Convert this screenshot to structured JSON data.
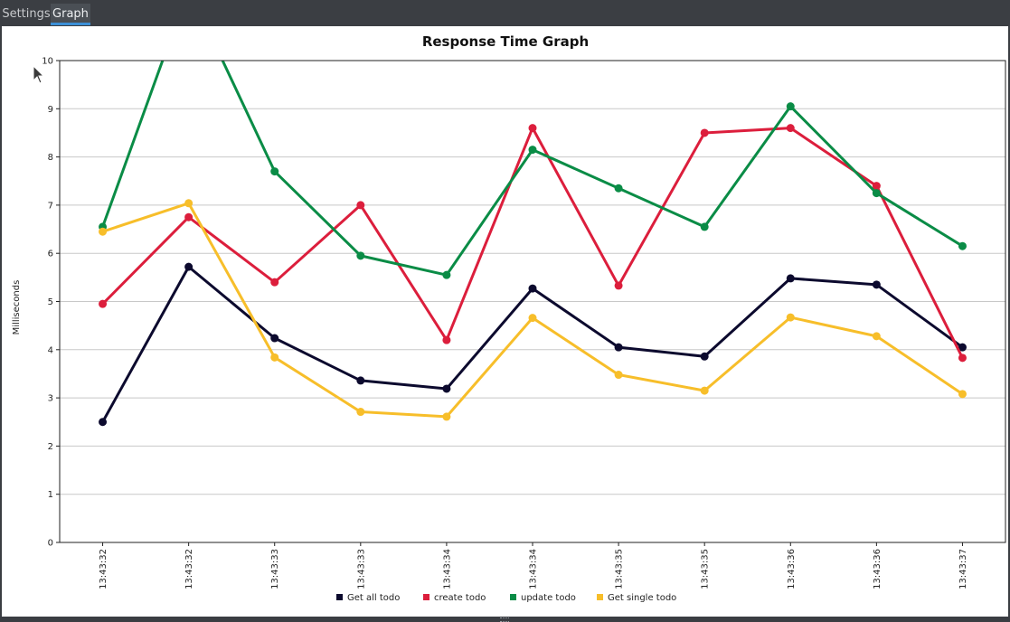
{
  "tabs": [
    {
      "label": "Settings",
      "active": false
    },
    {
      "label": "Graph",
      "active": true
    }
  ],
  "colors": {
    "tab_active_indicator": "#3b8fd6",
    "get_all": "#0c0a2e",
    "create": "#dc1e3c",
    "update": "#0a8c46",
    "get_single": "#f7be2a"
  },
  "chart_data": {
    "type": "line",
    "title": "Response Time Graph",
    "xlabel": "",
    "ylabel": "Milliseconds",
    "ylim": [
      0,
      10
    ],
    "yticks": [
      0,
      1,
      2,
      3,
      4,
      5,
      6,
      7,
      8,
      9,
      10
    ],
    "grid": true,
    "legend_position": "bottom",
    "categories": [
      "13:43:32",
      "13:43:32",
      "13:43:33",
      "13:43:33",
      "13:43:34",
      "13:43:34",
      "13:43:35",
      "13:43:35",
      "13:43:36",
      "13:43:36",
      "13:43:37"
    ],
    "series": [
      {
        "name": "Get all todo",
        "color": "#0c0a2e",
        "values": [
          2.5,
          5.72,
          4.24,
          3.36,
          3.19,
          5.27,
          4.05,
          3.86,
          5.48,
          5.35,
          4.05
        ]
      },
      {
        "name": "create todo",
        "color": "#dc1e3c",
        "values": [
          4.95,
          6.75,
          5.4,
          7.0,
          4.2,
          8.6,
          5.33,
          8.5,
          8.6,
          7.4,
          3.83
        ]
      },
      {
        "name": "update todo",
        "color": "#0a8c46",
        "values": [
          6.55,
          11.5,
          7.7,
          5.95,
          5.55,
          8.15,
          7.35,
          6.55,
          9.05,
          7.25,
          6.15
        ]
      },
      {
        "name": "Get single todo",
        "color": "#f7be2a",
        "values": [
          6.45,
          7.04,
          3.84,
          2.71,
          2.61,
          4.66,
          3.48,
          3.15,
          4.67,
          4.28,
          3.08
        ]
      }
    ]
  }
}
